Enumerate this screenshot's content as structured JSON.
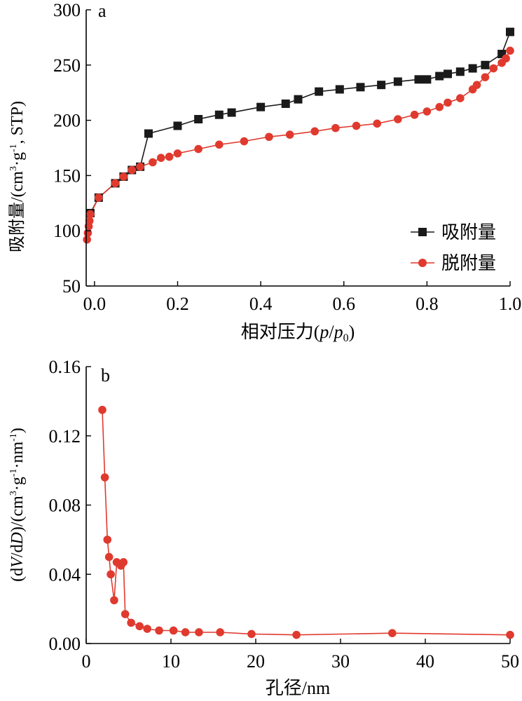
{
  "colors": {
    "adsorption": "#1a1a1a",
    "desorption": "#e03a2f",
    "axis": "#000000"
  },
  "chart_data": [
    {
      "type": "line",
      "panel_label": "a",
      "xlabel": "相对压力(p/p0)",
      "ylabel": "吸附量/(cm3·g-1, STP)",
      "xlim": [
        -0.02,
        1.0
      ],
      "ylim": [
        50,
        300
      ],
      "x_ticks": [
        "0.0",
        "0.2",
        "0.4",
        "0.6",
        "0.8",
        "1.0"
      ],
      "y_ticks": [
        "50",
        "100",
        "150",
        "200",
        "250",
        "300"
      ],
      "legend_position": "bottom-right",
      "series": [
        {
          "name": "吸附量",
          "marker": "square",
          "color": "#1a1a1a",
          "x": [
            -0.01,
            0.01,
            0.05,
            0.07,
            0.09,
            0.11,
            0.13,
            0.2,
            0.25,
            0.3,
            0.33,
            0.4,
            0.46,
            0.49,
            0.54,
            0.59,
            0.64,
            0.69,
            0.73,
            0.78,
            0.8,
            0.83,
            0.85,
            0.88,
            0.91,
            0.94,
            0.98,
            1.0
          ],
          "y": [
            116,
            130,
            143,
            149,
            155,
            158,
            188,
            195,
            201,
            205,
            207,
            212,
            215,
            219,
            226,
            228,
            230,
            232,
            235,
            237,
            237,
            240,
            242,
            244,
            247,
            250,
            260,
            280
          ]
        },
        {
          "name": "脱附量",
          "marker": "circle",
          "color": "#e03a2f",
          "x": [
            -0.018,
            -0.016,
            -0.014,
            -0.012,
            -0.01,
            0.01,
            0.05,
            0.07,
            0.09,
            0.11,
            0.14,
            0.16,
            0.18,
            0.2,
            0.25,
            0.3,
            0.36,
            0.42,
            0.47,
            0.53,
            0.58,
            0.63,
            0.68,
            0.73,
            0.77,
            0.8,
            0.83,
            0.85,
            0.88,
            0.91,
            0.92,
            0.94,
            0.96,
            0.98,
            0.99,
            1.0
          ],
          "y": [
            92,
            98,
            104,
            109,
            115,
            130,
            143,
            149,
            155,
            158,
            162,
            166,
            167,
            170,
            174,
            178,
            181,
            185,
            187,
            190,
            193,
            195,
            197,
            201,
            205,
            208,
            212,
            216,
            220,
            228,
            232,
            239,
            247,
            252,
            256,
            263
          ]
        }
      ]
    },
    {
      "type": "line",
      "panel_label": "b",
      "xlabel": "孔径/nm",
      "ylabel": "(dV/dD)/(cm3·g-1·nm-1)",
      "xlim": [
        0,
        50
      ],
      "ylim": [
        0,
        0.16
      ],
      "x_ticks": [
        "0",
        "10",
        "20",
        "30",
        "40",
        "50"
      ],
      "y_ticks": [
        "0.00",
        "0.04",
        "0.08",
        "0.12",
        "0.16"
      ],
      "series": [
        {
          "marker": "circle",
          "color": "#e03a2f",
          "x": [
            1.9,
            2.2,
            2.5,
            2.7,
            2.9,
            3.3,
            3.6,
            4.1,
            4.4,
            4.6,
            5.3,
            6.3,
            7.2,
            8.6,
            10.3,
            11.7,
            13.3,
            15.8,
            19.5,
            24.8,
            36.1,
            50.0
          ],
          "y": [
            0.135,
            0.096,
            0.06,
            0.05,
            0.04,
            0.025,
            0.047,
            0.045,
            0.047,
            0.017,
            0.012,
            0.01,
            0.0085,
            0.0075,
            0.0075,
            0.0065,
            0.0065,
            0.0065,
            0.0055,
            0.005,
            0.006,
            0.005
          ]
        }
      ]
    }
  ]
}
